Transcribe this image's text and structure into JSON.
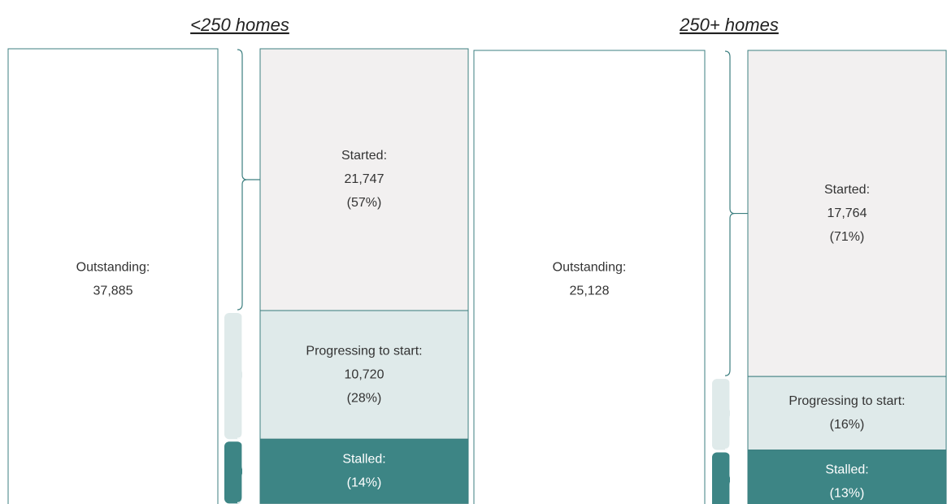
{
  "chart_data": [
    {
      "type": "stacked_bar",
      "title": "<250 homes",
      "total": {
        "name": "Outstanding:",
        "count": {
          "value": 37885,
          "label": "37,885"
        }
      },
      "segments": [
        {
          "name": "Started:",
          "count": {
            "value": 21747,
            "label": "21,747"
          },
          "value": 57,
          "value_label": "(57%)",
          "color": "#f2f0f0"
        },
        {
          "name": "Progressing to start:",
          "count": {
            "value": 10720,
            "label": "10,720"
          },
          "value": 28,
          "value_label": "(28%)",
          "color": "#dfeaea"
        },
        {
          "name": "Stalled:",
          "value": 14,
          "value_label": "(14%)",
          "color": "#3d8585"
        }
      ]
    },
    {
      "type": "stacked_bar",
      "title": "250+ homes",
      "total": {
        "name": "Outstanding:",
        "count": {
          "value": 25128,
          "label": "25,128"
        }
      },
      "segments": [
        {
          "name": "Started:",
          "count": {
            "value": 17764,
            "label": "17,764"
          },
          "value": 71,
          "value_label": "(71%)",
          "color": "#f2f0f0"
        },
        {
          "name": "Progressing to start:",
          "value": 16,
          "value_label": "(16%)",
          "color": "#dfeaea"
        },
        {
          "name": "Stalled:",
          "value": 13,
          "value_label": "(13%)",
          "color": "#3d8585"
        }
      ]
    }
  ]
}
